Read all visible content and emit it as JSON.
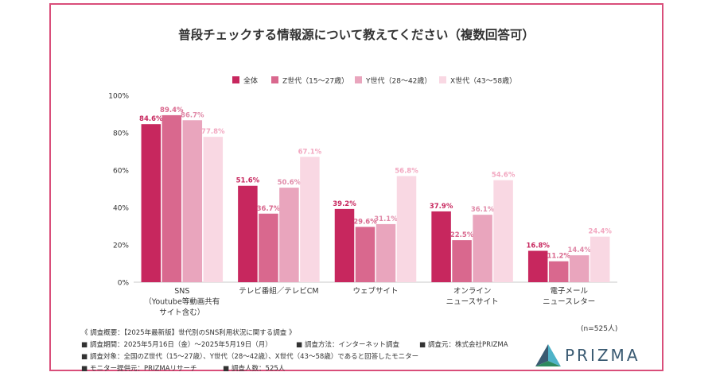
{
  "title": "普段チェックする情報源について教えてください（複数回答可）",
  "sample_note": "(n=525人)",
  "notes": {
    "survey_heading": "《 調査概要：【2025年最新版】世代別のSNS利用状況に関する調査 》",
    "period": "調査期間：2025年5月16日（金）〜2025年5月19日（月）",
    "method": "調査方法：インターネット調査",
    "organizer": "調査元：株式会社PRIZMA",
    "target": "調査対象：全国のZ世代（15〜27歳）、Y世代（28〜42歳）、X世代（43〜58歳）であると回答したモニター",
    "provider": "モニター提供元：PRIZMAリサーチ",
    "respondents": "調査人数：525人",
    "bullet": "■"
  },
  "logo": {
    "text": "PRIZMA",
    "colors": [
      "#3a5a72",
      "#4fb3c8",
      "#2e8a5e"
    ]
  },
  "chart_data": {
    "type": "bar",
    "title": "普段チェックする情報源について教えてください（複数回答可）",
    "categories": [
      [
        "SNS",
        "（Youtube等動画共有",
        "サイト含む）"
      ],
      [
        "テレビ番組／テレビCM"
      ],
      [
        "ウェブサイト"
      ],
      [
        "オンライン",
        "ニュースサイト"
      ],
      [
        "電子メール",
        "ニュースレター"
      ]
    ],
    "series": [
      {
        "name": "全体",
        "color": "#c7275e",
        "label_color": "#c7275e",
        "values": [
          84.6,
          51.6,
          39.2,
          37.9,
          16.8
        ]
      },
      {
        "name": "Z世代（15〜27歳）",
        "color": "#d9688e",
        "label_color": "#d9688e",
        "values": [
          89.4,
          36.7,
          29.6,
          22.5,
          11.2
        ]
      },
      {
        "name": "Y世代（28〜42歳）",
        "color": "#e9a5bd",
        "label_color": "#e08aa8",
        "values": [
          86.7,
          50.6,
          31.1,
          36.1,
          14.4
        ]
      },
      {
        "name": "X世代（43〜58歳）",
        "color": "#f9d8e3",
        "label_color": "#f2a7c0",
        "values": [
          77.8,
          67.1,
          56.8,
          54.6,
          24.4
        ]
      }
    ],
    "value_suffix": "%",
    "yticks": [
      "0%",
      "20%",
      "40%",
      "60%",
      "80%",
      "100%"
    ],
    "ylim": [
      0,
      100
    ],
    "legend_position": "top",
    "grid": false
  }
}
